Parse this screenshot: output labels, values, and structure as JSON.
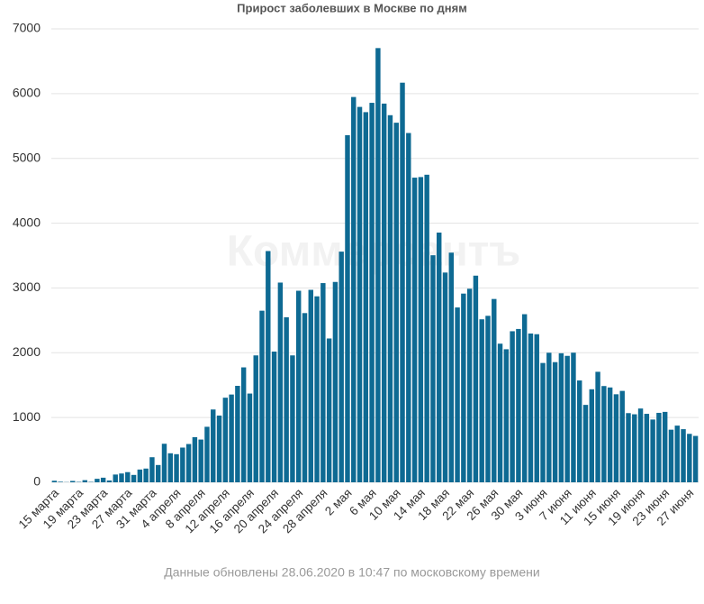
{
  "chart_data": {
    "type": "bar",
    "title": "Прирост заболевших в Москве по дням",
    "watermark": "Коммерсантъ",
    "footnote": "Данные обновлены 28.06.2020 в 10:47 по московскому времени",
    "categories": [
      "15 марта",
      null,
      null,
      null,
      "19 марта",
      null,
      null,
      null,
      "23 марта",
      null,
      null,
      null,
      "27 марта",
      null,
      null,
      null,
      "31 марта",
      null,
      null,
      null,
      "4 апреля",
      null,
      null,
      null,
      "8 апреля",
      null,
      null,
      null,
      "12 апреля",
      null,
      null,
      null,
      "16 апреля",
      null,
      null,
      null,
      "20 апреля",
      null,
      null,
      null,
      "24 апреля",
      null,
      null,
      null,
      "28 апреля",
      null,
      null,
      null,
      "2 мая",
      null,
      null,
      null,
      "6 мая",
      null,
      null,
      null,
      "10 мая",
      null,
      null,
      null,
      "14 мая",
      null,
      null,
      null,
      "18 мая",
      null,
      null,
      null,
      "22 мая",
      null,
      null,
      null,
      "26 мая",
      null,
      null,
      null,
      "30 мая",
      null,
      null,
      null,
      "3 июня",
      null,
      null,
      null,
      "7 июня",
      null,
      null,
      null,
      "11 июня",
      null,
      null,
      null,
      "15 июня",
      null,
      null,
      null,
      "19 июня",
      null,
      null,
      null,
      "23 июня",
      null,
      null,
      null,
      "27 июня",
      null
    ],
    "values": [
      24,
      9,
      3,
      21,
      6,
      33,
      6,
      54,
      71,
      28,
      120,
      136,
      157,
      114,
      197,
      212,
      387,
      267,
      595,
      448,
      434,
      536,
      591,
      697,
      660,
      857,
      1124,
      1030,
      1306,
      1355,
      1489,
      1774,
      1370,
      1959,
      2649,
      3570,
      2018,
      3083,
      2548,
      1959,
      2957,
      2612,
      2971,
      2871,
      3075,
      2220,
      3093,
      3561,
      5358,
      5948,
      5795,
      5714,
      5858,
      6703,
      5846,
      5667,
      5551,
      6169,
      5392,
      4703,
      4712,
      4748,
      3505,
      3855,
      3238,
      3545,
      2699,
      2913,
      2988,
      3190,
      2516,
      2570,
      2830,
      2140,
      2054,
      2332,
      2367,
      2595,
      2297,
      2286,
      1842,
      2000,
      1855,
      1992,
      1952,
      2001,
      1572,
      1195,
      1436,
      1706,
      1486,
      1464,
      1359,
      1411,
      1068,
      1050,
      1139,
      1057,
      969,
      1072,
      1087,
      812,
      875,
      820,
      748,
      716
    ],
    "color": "#0e6a93",
    "ylim": [
      0,
      7000
    ],
    "yticks": [
      0,
      1000,
      2000,
      3000,
      4000,
      5000,
      6000,
      7000
    ],
    "grid": true
  }
}
